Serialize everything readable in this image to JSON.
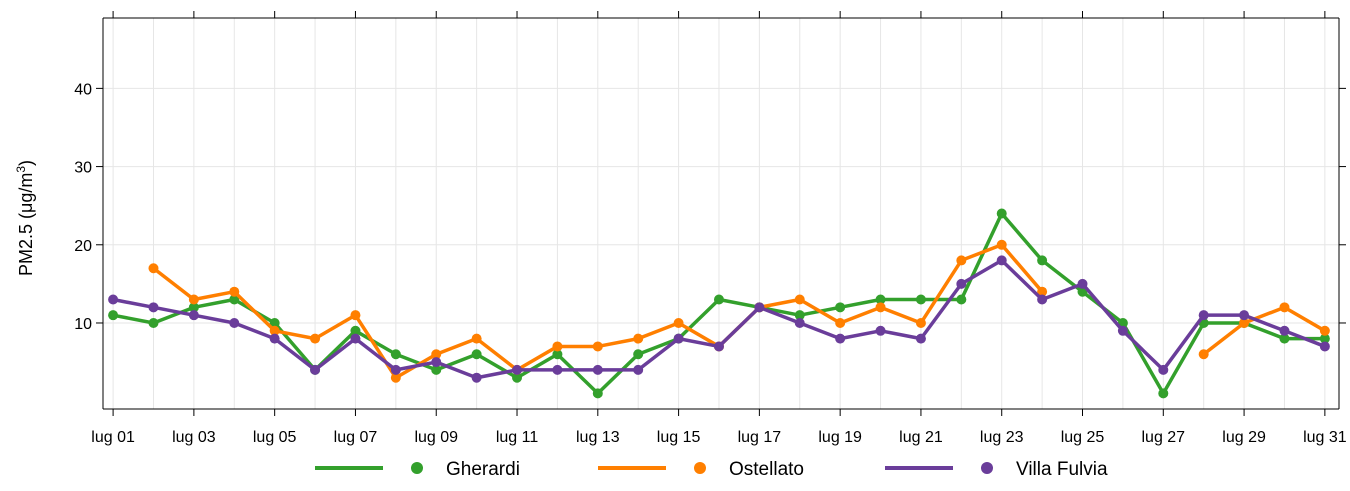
{
  "chart_data": {
    "type": "line",
    "ylabel_prefix": "PM2.5 (",
    "ylabel_unit": "μg/m",
    "ylabel_sup": "3",
    "ylabel_suffix": ")",
    "ylim": [
      -1,
      49
    ],
    "yticks": [
      10,
      20,
      30,
      40
    ],
    "xlim": [
      0.75,
      31.35
    ],
    "x": [
      1,
      2,
      3,
      4,
      5,
      6,
      7,
      8,
      9,
      10,
      11,
      12,
      13,
      14,
      15,
      16,
      17,
      18,
      19,
      20,
      21,
      22,
      23,
      24,
      25,
      26,
      27,
      28,
      29,
      30,
      31
    ],
    "xticks": [
      1,
      3,
      5,
      7,
      9,
      11,
      13,
      15,
      17,
      19,
      21,
      23,
      25,
      27,
      29,
      31
    ],
    "xtick_labels": [
      "lug 01",
      "lug 03",
      "lug 05",
      "lug 07",
      "lug 09",
      "lug 11",
      "lug 13",
      "lug 15",
      "lug 17",
      "lug 19",
      "lug 21",
      "lug 23",
      "lug 25",
      "lug 27",
      "lug 29",
      "lug 31"
    ],
    "grid": true,
    "legend_position": "bottom",
    "series": [
      {
        "name": "Gherardi",
        "color": "#33a02c",
        "values": [
          11,
          10,
          12,
          13,
          10,
          4,
          9,
          6,
          4,
          6,
          3,
          6,
          1,
          6,
          8,
          13,
          12,
          11,
          12,
          13,
          13,
          13,
          24,
          18,
          14,
          10,
          1,
          10,
          10,
          8,
          8
        ]
      },
      {
        "name": "Ostellato",
        "color": "#ff7f00",
        "values": [
          null,
          17,
          13,
          14,
          9,
          8,
          11,
          3,
          6,
          8,
          4,
          7,
          7,
          8,
          10,
          7,
          12,
          13,
          10,
          12,
          10,
          18,
          20,
          14,
          null,
          null,
          null,
          6,
          10,
          12,
          9
        ]
      },
      {
        "name": "Villa Fulvia",
        "color": "#6a3d9a",
        "values": [
          13,
          12,
          11,
          10,
          8,
          4,
          8,
          4,
          5,
          3,
          4,
          4,
          4,
          4,
          8,
          7,
          12,
          10,
          8,
          9,
          8,
          15,
          18,
          13,
          15,
          9,
          4,
          11,
          11,
          9,
          7
        ]
      }
    ]
  }
}
